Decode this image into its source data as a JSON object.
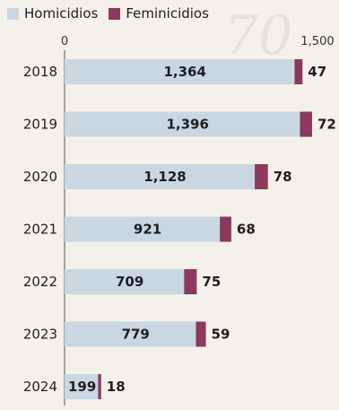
{
  "chart_data": {
    "type": "bar",
    "stacked": true,
    "orientation": "horizontal",
    "categories": [
      "2018",
      "2019",
      "2020",
      "2021",
      "2022",
      "2023",
      "2024"
    ],
    "series": [
      {
        "name": "Homicidios",
        "values": [
          1364,
          1396,
          1128,
          921,
          709,
          779,
          199
        ],
        "color": "#c9d7e3"
      },
      {
        "name": "Feminicidios",
        "values": [
          47,
          72,
          78,
          68,
          75,
          59,
          18
        ],
        "color": "#8b3a5e"
      }
    ],
    "value_labels": {
      "Homicidios": [
        "1,364",
        "1,396",
        "1,128",
        "921",
        "709",
        "779",
        "199"
      ],
      "Feminicidios": [
        "47",
        "72",
        "78",
        "68",
        "75",
        "59",
        "18"
      ]
    },
    "xlim": [
      0,
      1500
    ],
    "x_ticks": [
      {
        "value": 0,
        "label": "0"
      },
      {
        "value": 1500,
        "label": "1,500"
      }
    ],
    "legend_position": "top-left",
    "grid": false
  }
}
